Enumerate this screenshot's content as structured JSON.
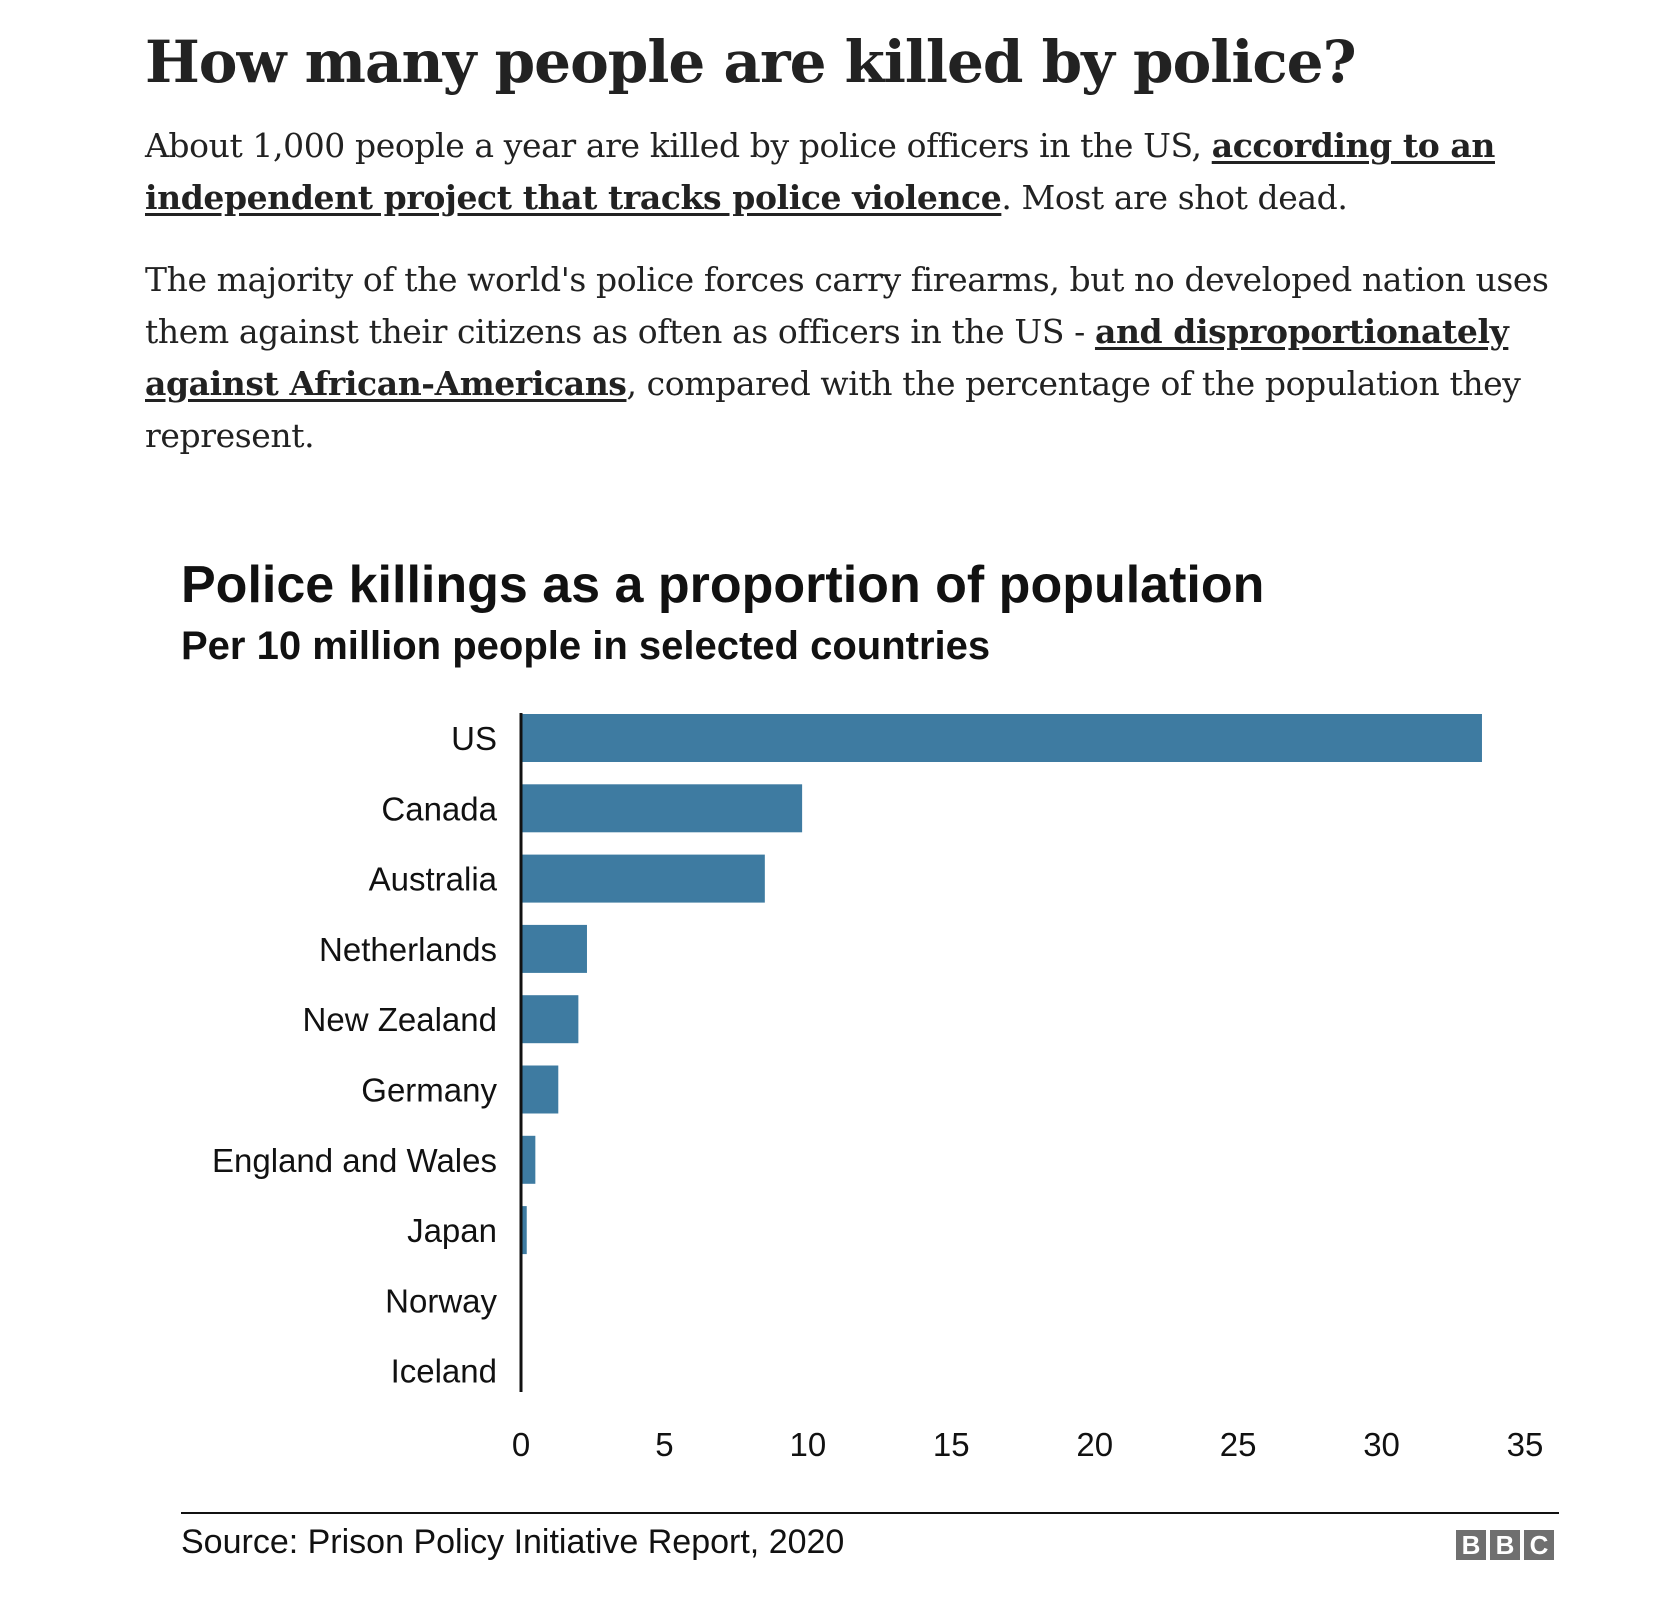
{
  "article": {
    "headline": "How many people are killed by police?",
    "para1_text_a": "About 1,000 people a year are killed by police officers in the US, ",
    "para1_link": "according to an independent project that tracks police violence",
    "para1_text_b": ". Most are shot dead.",
    "para2_text_a": "The majority of the world's police forces carry firearms, but no developed nation uses them against their citizens as often as officers in the US - ",
    "para2_link": "and disproportionately against African-Americans",
    "para2_text_b": ", compared with the percentage of the population they represent."
  },
  "chart_data": {
    "type": "bar",
    "orientation": "horizontal",
    "title": "Police killings as a proportion of population",
    "subtitle": "Per 10 million people in selected countries",
    "categories": [
      "US",
      "Canada",
      "Australia",
      "Netherlands",
      "New Zealand",
      "Germany",
      "England and Wales",
      "Japan",
      "Norway",
      "Iceland"
    ],
    "values": [
      33.5,
      9.8,
      8.5,
      2.3,
      2.0,
      1.3,
      0.5,
      0.2,
      0,
      0
    ],
    "xlim": [
      0,
      35
    ],
    "xticks": [
      0,
      5,
      10,
      15,
      20,
      25,
      30,
      35
    ],
    "bar_color": "#3e7ba1",
    "grid": false,
    "source": "Source: Prison Policy Initiative Report, 2020"
  },
  "branding": {
    "logo_letters": [
      "B",
      "B",
      "C"
    ]
  }
}
